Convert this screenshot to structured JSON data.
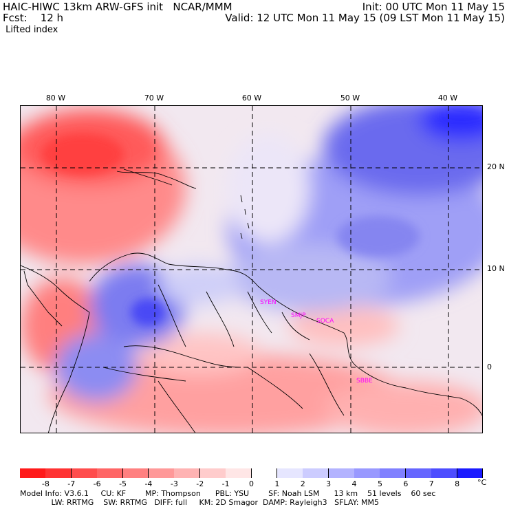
{
  "header": {
    "line1_left": "HAIC-HIWC 13km ARW-GFS init   NCAR/MMM",
    "line1_right": "Init: 00 UTC Mon 11 May 15",
    "line2_left": "Fcst:    12 h",
    "line2_right": "Valid: 12 UTC Mon 11 May 15 (09 LST Mon 11 May 15)",
    "field": " Lifted index"
  },
  "axes": {
    "lon_labels": [
      "80 W",
      "70 W",
      "60 W",
      "50 W",
      "40 W"
    ],
    "lat_labels": [
      "20 N",
      "10 N",
      "0"
    ]
  },
  "stations": [
    "SYEN",
    "SMJP",
    "SOCA",
    "SBBE"
  ],
  "colorbar": {
    "tick_labels": [
      "-8",
      "-7",
      "-6",
      "-5",
      "-4",
      "-3",
      "-2",
      "-1",
      "0",
      "1",
      "2",
      "3",
      "4",
      "5",
      "6",
      "7",
      "8"
    ],
    "unit": "°C",
    "colors": [
      "#ff1a1a",
      "#ff3333",
      "#ff4d4d",
      "#ff6666",
      "#ff8080",
      "#ff9999",
      "#ffb3b3",
      "#ffcccc",
      "#ffe6e6",
      "#ffffff",
      "#e6e6ff",
      "#ccccff",
      "#b3b3ff",
      "#9999ff",
      "#8080ff",
      "#6666ff",
      "#4d4dff",
      "#1a1aff"
    ]
  },
  "footer": {
    "line1": "Model Info: V3.6.1     CU: KF        MP: Thompson      PBL: YSU        SF: Noah LSM      13 km    51 levels    60 sec",
    "line2": "             LW: RRTMG    SW: RRTMG   DIFF: full     KM: 2D Smagor  DAMP: Rayleigh3   SFLAY: MM5"
  }
}
